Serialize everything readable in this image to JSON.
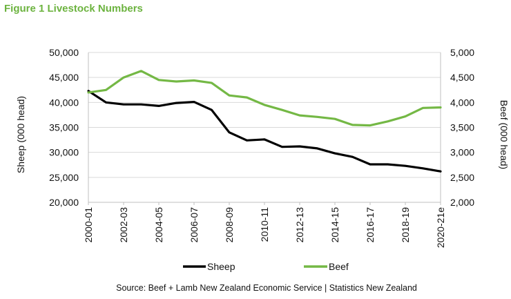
{
  "figure_title": "Figure 1 Livestock Numbers",
  "source": "Source: Beef + Lamb New Zealand  Economic Service | Statistics New Zealand",
  "colors": {
    "sheep": "#000000",
    "beef": "#74b845",
    "title": "#6cb33f",
    "axis": "#bfbfbf"
  },
  "chart_data": {
    "type": "line",
    "x": [
      "2000-01",
      "2001-02",
      "2002-03",
      "2003-04",
      "2004-05",
      "2005-06",
      "2006-07",
      "2007-08",
      "2008-09",
      "2009-10",
      "2010-11",
      "2011-12",
      "2012-13",
      "2013-14",
      "2014-15",
      "2015-16",
      "2016-17",
      "2017-18",
      "2018-19",
      "2019-20",
      "2020-21e"
    ],
    "x_tick_labels": [
      "2000-01",
      "2002-03",
      "2004-05",
      "2006-07",
      "2008-09",
      "2010-11",
      "2012-13",
      "2014-15",
      "2016-17",
      "2018-19",
      "2020-21e"
    ],
    "ylabel": "Sheep (000 head)",
    "ylabel_right": "Beef (000 head)",
    "ylim": [
      20000,
      50000
    ],
    "ylim_right": [
      2000,
      5000
    ],
    "y_ticks": [
      "20,000",
      "25,000",
      "30,000",
      "35,000",
      "40,000",
      "45,000",
      "50,000"
    ],
    "y_ticks_right": [
      "2,000",
      "2,500",
      "3,000",
      "3,500",
      "4,000",
      "4,500",
      "5,000"
    ],
    "legend_position": "bottom",
    "series": [
      {
        "name": "Sheep",
        "axis": "left",
        "color": "#000000",
        "values": [
          42300,
          40000,
          39600,
          39600,
          39300,
          39900,
          40100,
          38500,
          34000,
          32400,
          32600,
          31100,
          31200,
          30800,
          29800,
          29100,
          27600,
          27600,
          27300,
          26800,
          26200
        ]
      },
      {
        "name": "Beef",
        "axis": "right",
        "color": "#74b845",
        "values": [
          4200,
          4250,
          4500,
          4630,
          4450,
          4420,
          4440,
          4390,
          4140,
          4100,
          3950,
          3850,
          3740,
          3710,
          3670,
          3550,
          3540,
          3620,
          3720,
          3890,
          3900
        ]
      }
    ]
  }
}
